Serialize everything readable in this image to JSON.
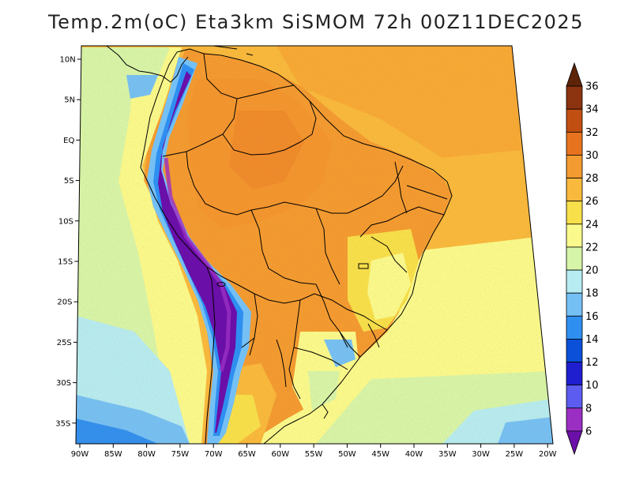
{
  "title": "Temp.2m(oC) Eta3km SiSMOM 72h 00Z11DEC2025",
  "map": {
    "variable": "2 m air temperature",
    "units": "oC",
    "lat_labels": [
      "10N",
      "5N",
      "EQ",
      "5S",
      "10S",
      "15S",
      "20S",
      "25S",
      "30S",
      "35S"
    ],
    "lon_labels": [
      "90W",
      "85W",
      "80W",
      "75W",
      "70W",
      "65W",
      "60W",
      "55W",
      "50W",
      "45W",
      "40W",
      "35W",
      "30W",
      "25W",
      "20W"
    ]
  },
  "colorbar": {
    "levels": [
      "6",
      "8",
      "10",
      "12",
      "14",
      "16",
      "18",
      "20",
      "22",
      "24",
      "26",
      "28",
      "30",
      "32",
      "34",
      "36"
    ],
    "colors": [
      "#6a0fa8",
      "#9b2fc4",
      "#5c5cf0",
      "#1f1fcf",
      "#0a50d8",
      "#2f8ff0",
      "#74c0f5",
      "#b6ecf2",
      "#d7f5a8",
      "#fafa8c",
      "#f7e04a",
      "#f8b93c",
      "#f39a30",
      "#e8731f",
      "#c24f12",
      "#8c3410",
      "#5e2408"
    ]
  }
}
